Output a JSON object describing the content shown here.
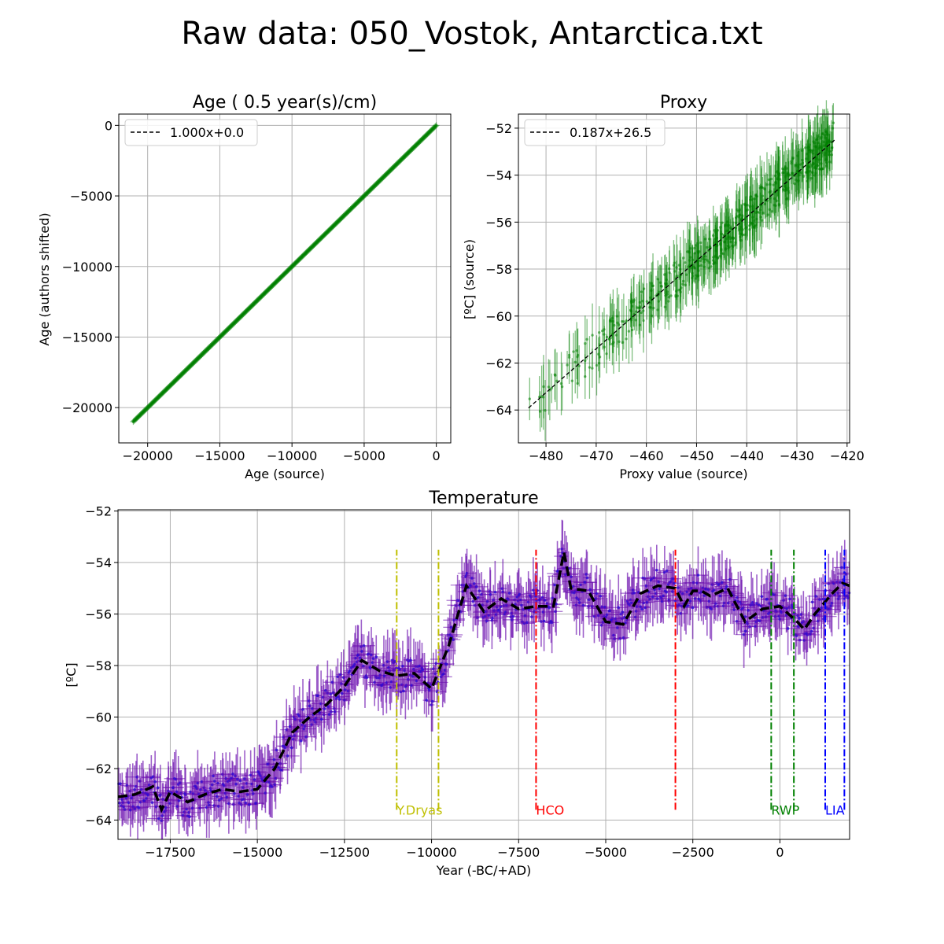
{
  "suptitle": "Raw data: 050_Vostok, Antarctica.txt",
  "chart_data": [
    {
      "id": "age",
      "type": "scatter",
      "title": "Age ( 0.5 year(s)/cm)",
      "xlabel": "Age (source)",
      "ylabel": "Age (authors shifted)",
      "xlim": [
        -22000,
        1000
      ],
      "ylim": [
        -22500,
        800
      ],
      "xticks": [
        -20000,
        -15000,
        -10000,
        -5000,
        0
      ],
      "yticks": [
        -20000,
        -15000,
        -10000,
        -5000,
        0
      ],
      "xtick_labels": [
        "−20000",
        "−15000",
        "−10000",
        "−5000",
        "0"
      ],
      "ytick_labels": [
        "−20000",
        "−15000",
        "−10000",
        "−5000",
        "0"
      ],
      "grid": true,
      "legend": {
        "position": "top-left",
        "entries": [
          {
            "label": "1.000x+0.0",
            "style": "dashed",
            "color": "#000000"
          }
        ]
      },
      "fit": {
        "slope": 1.0,
        "intercept": 0.0,
        "x_range": [
          -21000,
          0
        ]
      },
      "series": [
        {
          "color": "#008000",
          "x_range": [
            -21000,
            0
          ],
          "y_range": [
            -21000,
            0
          ],
          "points_on_line": true
        }
      ]
    },
    {
      "id": "proxy",
      "type": "scatter",
      "title": "Proxy",
      "xlabel": "Proxy value (source)",
      "ylabel": "[ºC] (source)",
      "xlim": [
        -485.5,
        -419.5
      ],
      "ylim": [
        -65.4,
        -51.4
      ],
      "xticks": [
        -480,
        -470,
        -460,
        -450,
        -440,
        -430,
        -420
      ],
      "yticks": [
        -64,
        -62,
        -60,
        -58,
        -56,
        -54,
        -52
      ],
      "xtick_labels": [
        "−480",
        "−470",
        "−460",
        "−450",
        "−440",
        "−430",
        "−420"
      ],
      "ytick_labels": [
        "−64",
        "−62",
        "−60",
        "−58",
        "−56",
        "−54",
        "−52"
      ],
      "grid": true,
      "legend": {
        "position": "top-left",
        "entries": [
          {
            "label": "0.187x+26.5",
            "style": "dashed",
            "color": "#000000"
          }
        ]
      },
      "fit": {
        "slope": 0.187,
        "intercept": 26.5,
        "x_range": [
          -483.5,
          -422.5
        ]
      },
      "series": [
        {
          "color": "#008000",
          "x_range": [
            -483.5,
            -422.5
          ],
          "y_approx": "fit line with scatter ±0.8, error bars ±0.9"
        }
      ]
    },
    {
      "id": "temperature",
      "type": "line",
      "title": "Temperature",
      "xlabel": "Year (-BC/+AD)",
      "ylabel": "[ºC]",
      "xlim": [
        -19000,
        2000
      ],
      "ylim": [
        -64.75,
        -51.95
      ],
      "xticks": [
        -17500,
        -15000,
        -12500,
        -10000,
        -7500,
        -5000,
        -2500,
        0
      ],
      "yticks": [
        -64,
        -62,
        -60,
        -58,
        -56,
        -54,
        -52
      ],
      "xtick_labels": [
        "−17500",
        "−15000",
        "−12500",
        "−10000",
        "−7500",
        "−5000",
        "−2500",
        "0"
      ],
      "ytick_labels": [
        "−64",
        "−62",
        "−60",
        "−58",
        "−56",
        "−54",
        "−52"
      ],
      "grid": true,
      "raw_series_color": "#6a0dad",
      "trend_color": "#000000",
      "trend": {
        "x": [
          -19000,
          -18500,
          -18000,
          -17750,
          -17500,
          -17000,
          -16500,
          -16000,
          -15500,
          -15000,
          -14500,
          -14000,
          -13500,
          -13000,
          -12500,
          -12000,
          -11500,
          -11000,
          -10500,
          -10000,
          -9500,
          -9000,
          -8500,
          -8000,
          -7500,
          -7000,
          -6500,
          -6200,
          -6000,
          -5500,
          -5000,
          -4500,
          -4000,
          -3500,
          -3000,
          -2750,
          -2500,
          -2250,
          -2000,
          -1500,
          -1000,
          -500,
          0,
          500,
          700,
          1000,
          1500,
          1800,
          2000
        ],
        "y": [
          -63.1,
          -63.0,
          -62.7,
          -63.6,
          -62.9,
          -63.3,
          -63.0,
          -62.8,
          -62.9,
          -62.8,
          -62.0,
          -60.6,
          -60.0,
          -59.5,
          -58.8,
          -57.8,
          -58.2,
          -58.4,
          -58.3,
          -58.9,
          -57.2,
          -54.9,
          -55.9,
          -55.4,
          -55.8,
          -55.7,
          -55.7,
          -53.6,
          -55.0,
          -55.1,
          -56.3,
          -56.4,
          -55.2,
          -54.9,
          -55.0,
          -55.7,
          -55.1,
          -55.1,
          -55.3,
          -55.0,
          -56.3,
          -55.8,
          -55.7,
          -56.3,
          -56.6,
          -56.0,
          -55.2,
          -54.8,
          -54.9
        ]
      },
      "periods": [
        {
          "label": "Y.Dryas",
          "color": "#bfbf00",
          "x0": -11000,
          "x1": -9800
        },
        {
          "label": "HCO",
          "color": "#ff0000",
          "x0": -7000,
          "x1": -3000
        },
        {
          "label": "RWP",
          "color": "#008000",
          "x0": -250,
          "x1": 400
        },
        {
          "label": "LIA",
          "color": "#0000ff",
          "x0": 1300,
          "x1": 1850
        }
      ],
      "period_lines_y": [
        -63.6,
        -53.5
      ]
    }
  ]
}
